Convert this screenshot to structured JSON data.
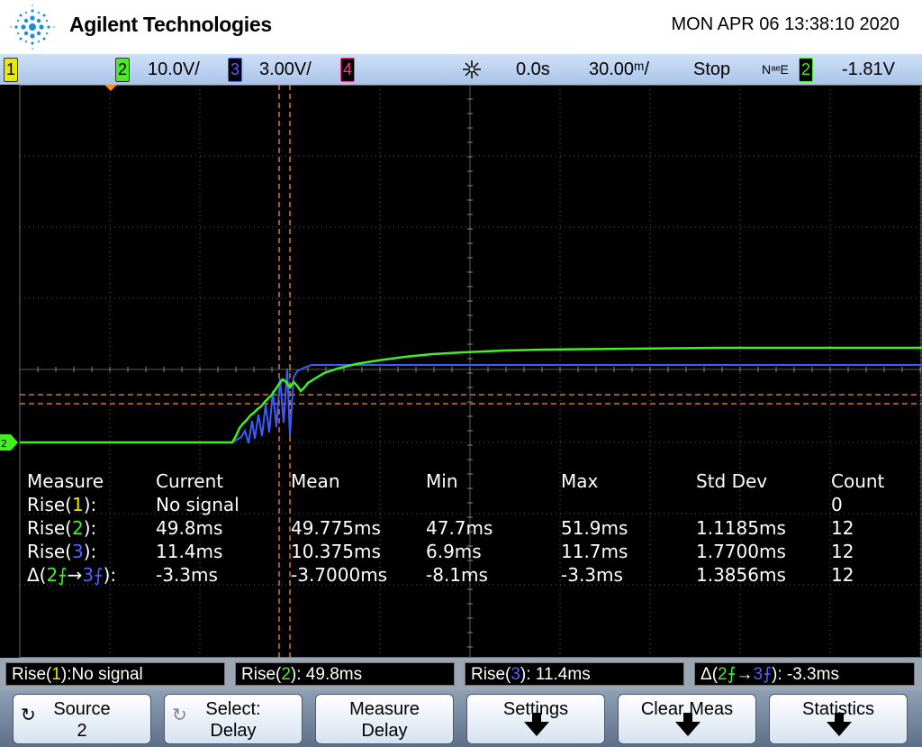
{
  "header": {
    "brand": "Agilent Technologies",
    "datetime": "MON APR 06 13:38:10 2020"
  },
  "status": {
    "ch1_num": "1",
    "ch2_num": "2",
    "ch2_scale": "10.0V/",
    "ch3_num": "3",
    "ch3_scale": "3.00V/",
    "ch4_num": "4",
    "trigger_icon": "trigger-burst-icon",
    "delay": "0.0s",
    "timebase": "30.00ᵐ/",
    "run_state": "Stop",
    "trigger_mode": "NᵃᵉE",
    "trig_ch_num": "2",
    "trig_level": "-1.81V"
  },
  "colors": {
    "ch1": "#e8e800",
    "ch2": "#44ee22",
    "ch3": "#4c64ff",
    "ch4": "#ff3399",
    "cursor": "#ff8c1a",
    "grid": "#7a7a7a"
  },
  "screen": {
    "ground_marker": "2",
    "trace_ch2": "ch2-rising-trace",
    "trace_ch3": "ch3-rising-trace"
  },
  "measurements": {
    "headers": [
      "Measure",
      "Current",
      "Mean",
      "Min",
      "Max",
      "Std Dev",
      "Count"
    ],
    "rows": [
      {
        "label_pre": "Rise(",
        "ch": "1",
        "label_post": "):",
        "current": "No signal",
        "mean": "",
        "min": "",
        "max": "",
        "std": "",
        "count": "0"
      },
      {
        "label_pre": "Rise(",
        "ch": "2",
        "label_post": "):",
        "current": "49.8ms",
        "mean": "49.775ms",
        "min": "47.7ms",
        "max": "51.9ms",
        "std": "1.1185ms",
        "count": "12"
      },
      {
        "label_pre": "Rise(",
        "ch": "3",
        "label_post": "):",
        "current": "11.4ms",
        "mean": "10.375ms",
        "min": "6.9ms",
        "max": "11.7ms",
        "std": "1.7700ms",
        "count": "12"
      },
      {
        "label_pre": "Δ(",
        "ch_a": "2",
        "edge": "⨍",
        "arrow": "→",
        "ch_b": "3",
        "label_post": "):",
        "current": "-3.3ms",
        "mean": "-3.7000ms",
        "min": "-8.1ms",
        "max": "-3.3ms",
        "std": "1.3856ms",
        "count": "12"
      }
    ]
  },
  "results": {
    "r1_pre": "Rise(",
    "r1_ch": "1",
    "r1_post": "):No signal",
    "r2_pre": "Rise(",
    "r2_ch": "2",
    "r2_post": "): 49.8ms",
    "r3_pre": "Rise(",
    "r3_ch": "3",
    "r3_post": "): 11.4ms",
    "r4_pre": "Δ(",
    "r4_cha": "2",
    "r4_edge": "⨍",
    "r4_arrow": "→",
    "r4_chb": "3",
    "r4_edge2": "⨍",
    "r4_post": "): -3.3ms"
  },
  "softkeys": [
    {
      "line1": "Source",
      "line2": "2",
      "icon": "rotary-knob-icon"
    },
    {
      "line1": "Select:",
      "line2": "Delay",
      "icon": "rotary-knob-icon"
    },
    {
      "line1": "Measure",
      "line2": "Delay"
    },
    {
      "line1": "Settings",
      "icon": "down-arrow-icon"
    },
    {
      "line1": "Clear Meas",
      "icon": "down-arrow-icon"
    },
    {
      "line1": "Statistics",
      "icon": "down-arrow-icon"
    }
  ]
}
